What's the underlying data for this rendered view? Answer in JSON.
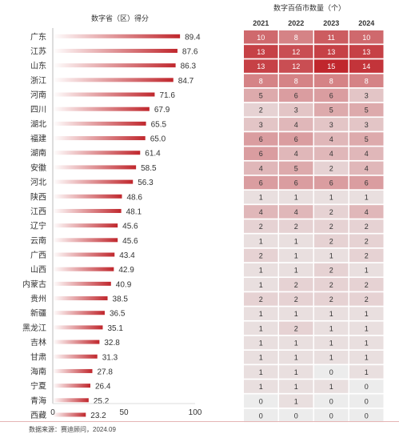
{
  "chart_data": [
    {
      "type": "bar",
      "orientation": "horizontal",
      "title": "数字省（区）得分",
      "categories": [
        "广东",
        "江苏",
        "山东",
        "浙江",
        "河南",
        "四川",
        "湖北",
        "福建",
        "湖南",
        "安徽",
        "河北",
        "陕西",
        "江西",
        "辽宁",
        "云南",
        "广西",
        "山西",
        "内蒙古",
        "贵州",
        "新疆",
        "黑龙江",
        "吉林",
        "甘肃",
        "海南",
        "宁夏",
        "青海",
        "西藏"
      ],
      "values": [
        89.4,
        87.6,
        86.3,
        84.7,
        71.6,
        67.9,
        65.5,
        65.0,
        61.4,
        58.5,
        56.3,
        48.6,
        48.1,
        45.6,
        45.6,
        43.4,
        42.9,
        40.9,
        38.5,
        36.5,
        35.1,
        32.8,
        31.3,
        27.8,
        26.4,
        25.2,
        23.2
      ],
      "data_labels": [
        "89.4",
        "87.6",
        "86.3",
        "84.7",
        "71.6",
        "67.9",
        "65.5",
        "65.0",
        "61.4",
        "58.5",
        "56.3",
        "48.6",
        "48.1",
        "45.6",
        "45.6",
        "43.4",
        "42.9",
        "40.9",
        "38.5",
        "36.5",
        "35.1",
        "32.8",
        "31.3",
        "27.8",
        "26.4",
        "25.2",
        "23.2"
      ],
      "xticks": [
        "0",
        "50",
        "100"
      ],
      "xlim": [
        0,
        100
      ],
      "grid": false,
      "color": "#c0272d"
    },
    {
      "type": "heatmap",
      "title": "数字百佰市数量（个）",
      "columns": [
        "2021",
        "2022",
        "2023",
        "2024"
      ],
      "rows": [
        "广东",
        "江苏",
        "山东",
        "浙江",
        "河南",
        "四川",
        "湖北",
        "福建",
        "湖南",
        "安徽",
        "河北",
        "陕西",
        "江西",
        "辽宁",
        "云南",
        "广西",
        "山西",
        "内蒙古",
        "贵州",
        "新疆",
        "黑龙江",
        "吉林",
        "甘肃",
        "海南",
        "宁夏",
        "青海",
        "西藏"
      ],
      "values": [
        [
          10,
          8,
          11,
          10
        ],
        [
          13,
          12,
          13,
          13
        ],
        [
          13,
          12,
          15,
          14
        ],
        [
          8,
          8,
          8,
          8
        ],
        [
          5,
          6,
          6,
          3
        ],
        [
          2,
          3,
          5,
          5
        ],
        [
          3,
          4,
          3,
          3
        ],
        [
          6,
          6,
          4,
          5
        ],
        [
          6,
          4,
          4,
          4
        ],
        [
          4,
          5,
          2,
          4
        ],
        [
          6,
          6,
          6,
          6
        ],
        [
          1,
          1,
          1,
          1
        ],
        [
          4,
          4,
          2,
          4
        ],
        [
          2,
          2,
          2,
          2
        ],
        [
          1,
          1,
          2,
          2
        ],
        [
          2,
          1,
          1,
          2
        ],
        [
          1,
          1,
          2,
          1
        ],
        [
          1,
          2,
          2,
          2
        ],
        [
          2,
          2,
          2,
          2
        ],
        [
          1,
          1,
          1,
          1
        ],
        [
          1,
          2,
          1,
          1
        ],
        [
          1,
          1,
          1,
          1
        ],
        [
          1,
          1,
          1,
          1
        ],
        [
          1,
          1,
          0,
          1
        ],
        [
          1,
          1,
          1,
          0
        ],
        [
          0,
          1,
          0,
          0
        ],
        [
          0,
          0,
          0,
          0
        ]
      ],
      "color_low": "#ececec",
      "color_high": "#c0272d"
    }
  ],
  "footer": {
    "source": "数据来源：赛迪顾问，2024.09"
  }
}
